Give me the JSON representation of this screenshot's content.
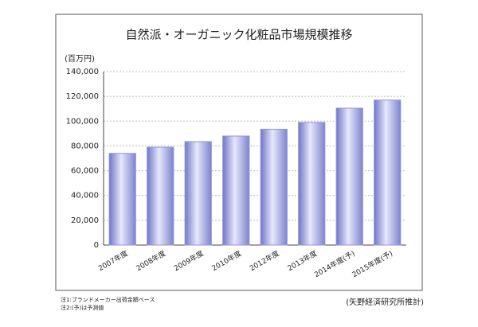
{
  "chart_data": {
    "type": "bar",
    "title": "自然派・オーガニック化粧品市場規模推移",
    "y_label": "(百万円)",
    "categories": [
      "2007年度",
      "2008年度",
      "2009年度",
      "2010年度",
      "2012年度",
      "2013年度",
      "2014年度(予)",
      "2015年度(予)"
    ],
    "values": [
      74000,
      79000,
      83500,
      88000,
      93500,
      99000,
      110500,
      117000
    ],
    "color": "#8f95d8",
    "ylim": [
      0,
      140000
    ],
    "yticks": [
      0,
      {
        "value": 20000,
        "label": "20,000"
      },
      {
        "value": 40000,
        "label": "40,000"
      },
      {
        "value": 60000,
        "label": "60,000"
      },
      {
        "value": 80000,
        "label": "80,000"
      },
      {
        "value": 100000,
        "label": "100,000"
      },
      {
        "value": 120000,
        "label": "120,000"
      },
      {
        "value": 140000,
        "label": "140,000"
      }
    ],
    "grid": true,
    "notes": [
      "注1:ブランドメーカー出荷金額ベース",
      "注2:(予)は予測値"
    ],
    "source": "(矢野経済研究所推計)"
  }
}
